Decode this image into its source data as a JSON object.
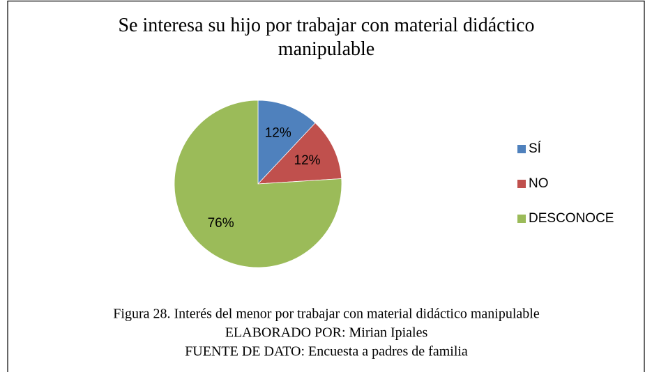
{
  "chart_data": {
    "type": "pie",
    "title": "Se interesa su hijo por trabajar con material didáctico manipulable",
    "categories": [
      "SÍ",
      "NO",
      "DESCONOCE"
    ],
    "values": [
      12,
      12,
      76
    ],
    "value_labels": [
      "12%",
      "12%",
      "76%"
    ],
    "colors": [
      "#4f81bd",
      "#c0504d",
      "#9bbb59"
    ],
    "legend": "right",
    "caption": [
      "Figura 28. Interés del menor por trabajar con material didáctico manipulable",
      "ELABORADO POR: Mirian Ipiales",
      "FUENTE DE DATO: Encuesta a padres de familia"
    ]
  }
}
